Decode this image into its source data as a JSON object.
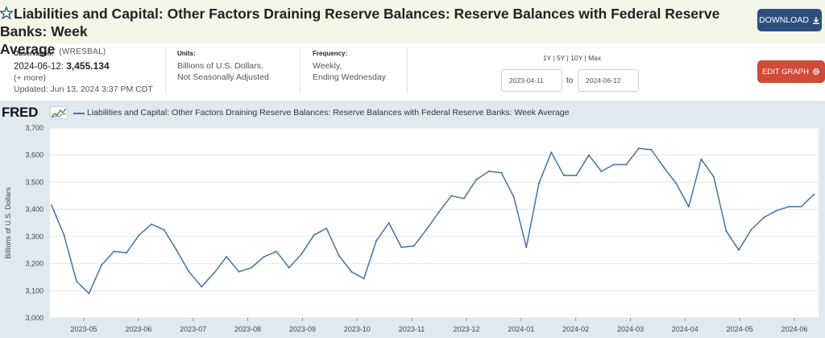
{
  "header": {
    "title_main": "Liabilities and Capital: Other Factors Draining Reserve Balances: Reserve Balances with Federal Reserve Banks: Week",
    "title_rest": "Average",
    "series_id": "(WRESBAL)",
    "download_label": "DOWNLOAD",
    "edit_label": "EDIT GRAPH"
  },
  "info": {
    "observation_label": "Observation:",
    "observation_date": "2024-06-12:",
    "observation_value": "3,455.134",
    "more": "(+ more)",
    "updated": "Updated: Jun 13, 2024 3:37 PM CDT",
    "units_label": "Units:",
    "units_line1": "Billions of U.S. Dollars,",
    "units_line2": "Not Seasonally Adjusted",
    "frequency_label": "Frequency:",
    "frequency_line1": "Weekly,",
    "frequency_line2": "Ending Wednesday"
  },
  "range": {
    "periods": "1Y | 5Y | 10Y | Max",
    "start": "2023-04-11",
    "to": "to",
    "end": "2024-06-12"
  },
  "brand": "FRED",
  "colors": {
    "series": "#4572a7",
    "download": "#2d4f7d",
    "edit": "#d24a38",
    "panel": "#e1e9f0"
  },
  "chart_data": {
    "type": "line",
    "legend": "Liabilities and Capital: Other Factors Draining Reserve Balances: Reserve Balances with Federal Reserve Banks: Week Average",
    "ylabel": "Billions of U.S. Dollars",
    "xlabel": "",
    "ylim": [
      3000,
      3700
    ],
    "yticks": [
      "3,000",
      "3,100",
      "3,200",
      "3,300",
      "3,400",
      "3,500",
      "3,600",
      "3,700"
    ],
    "xticks": [
      "2023-05",
      "2023-06",
      "2023-07",
      "2023-08",
      "2023-09",
      "2023-10",
      "2023-11",
      "2023-12",
      "2024-01",
      "2024-02",
      "2024-03",
      "2024-04",
      "2024-05",
      "2024-06"
    ],
    "grid": true,
    "series": [
      {
        "values": [
          3415,
          3305,
          3135,
          3090,
          3195,
          3245,
          3240,
          3305,
          3345,
          3325,
          3250,
          3170,
          3115,
          3165,
          3225,
          3170,
          3185,
          3225,
          3245,
          3185,
          3235,
          3305,
          3330,
          3230,
          3170,
          3145,
          3285,
          3350,
          3260,
          3265,
          3325,
          3390,
          3450,
          3440,
          3510,
          3540,
          3535,
          3445,
          3260,
          3495,
          3610,
          3525,
          3525,
          3600,
          3540,
          3565,
          3565,
          3625,
          3620,
          3555,
          3495,
          3410,
          3585,
          3520,
          3320,
          3250,
          3325,
          3370,
          3395,
          3410,
          3410,
          3455
        ]
      }
    ]
  }
}
